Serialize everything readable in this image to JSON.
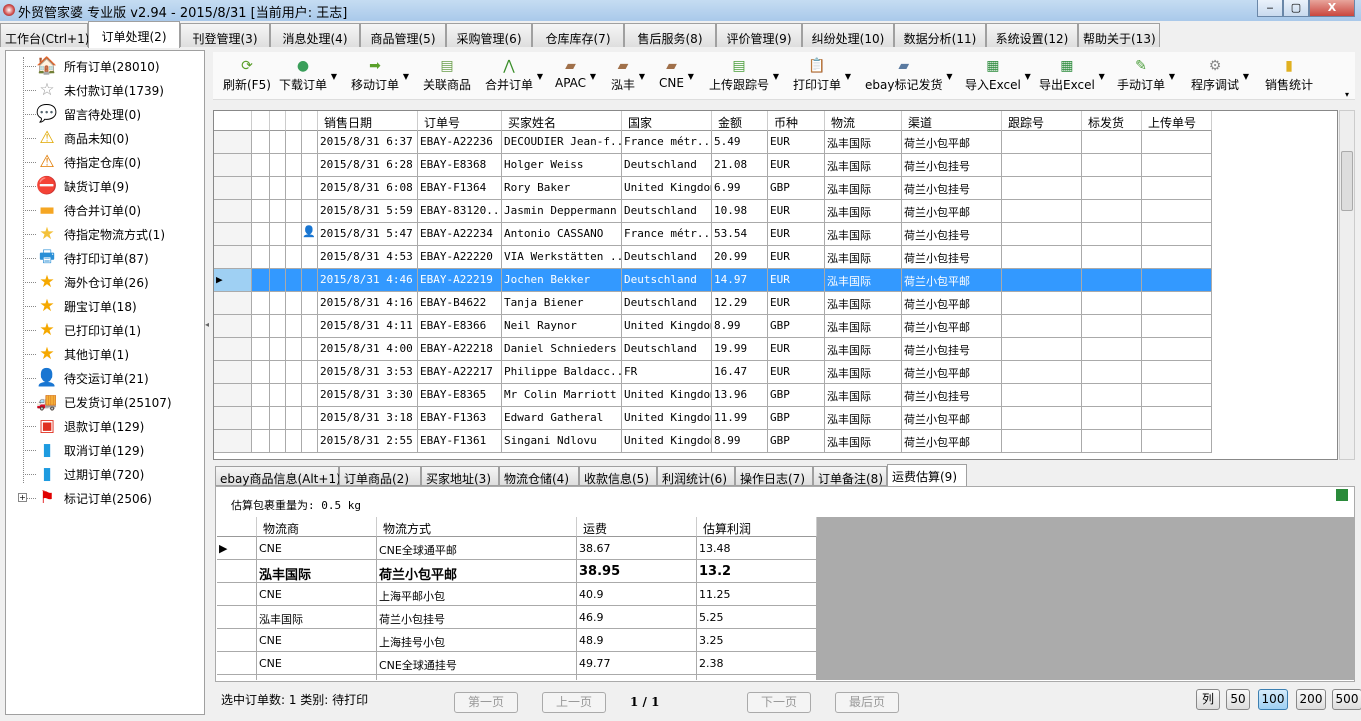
{
  "window": {
    "title": "外贸管家婆 专业版 v2.94 - 2015/8/31 [当前用户: 王志]",
    "min": "‒",
    "max": "▢",
    "close": "X"
  },
  "main_tabs": [
    "工作台(Ctrl+1)",
    "订单处理(2)",
    "刊登管理(3)",
    "消息处理(4)",
    "商品管理(5)",
    "采购管理(6)",
    "仓库库存(7)",
    "售后服务(8)",
    "评价管理(9)",
    "纠纷处理(10)",
    "数据分析(11)",
    "系统设置(12)",
    "帮助关于(13)"
  ],
  "active_tab": 1,
  "tree": [
    {
      "label": "所有订单(28010)",
      "icon": "home-icon",
      "glyph": "🏠",
      "color": "#e8641e"
    },
    {
      "label": "未付款订单(1739)",
      "icon": "star-outline-icon",
      "glyph": "☆",
      "color": "#999999"
    },
    {
      "label": "留言待处理(0)",
      "icon": "speech-bubble-icon",
      "glyph": "💬",
      "color": "#1e90ff"
    },
    {
      "label": "商品未知(0)",
      "icon": "warning-icon",
      "glyph": "⚠",
      "color": "#e0a800"
    },
    {
      "label": "待指定仓库(0)",
      "icon": "warning-outline-icon",
      "glyph": "⚠",
      "color": "#e07a00"
    },
    {
      "label": "缺货订单(9)",
      "icon": "no-entry-icon",
      "glyph": "⛔",
      "color": "#d40000"
    },
    {
      "label": "待合并订单(0)",
      "icon": "folder-icon",
      "glyph": "▬",
      "color": "#f5a623"
    },
    {
      "label": "待指定物流方式(1)",
      "icon": "half-star-icon",
      "glyph": "★",
      "color": "#f3c13a"
    },
    {
      "label": "待打印订单(87)",
      "icon": "printer-icon",
      "glyph": "🖶",
      "color": "#2a8fd6"
    },
    {
      "label": "海外仓订单(26)",
      "icon": "star-icon",
      "glyph": "★",
      "color": "#f5a800"
    },
    {
      "label": "跚宝订单(18)",
      "icon": "star-icon",
      "glyph": "★",
      "color": "#f5a800"
    },
    {
      "label": "已打印订单(1)",
      "icon": "star-icon",
      "glyph": "★",
      "color": "#f5a800"
    },
    {
      "label": "其他订单(1)",
      "icon": "star-icon",
      "glyph": "★",
      "color": "#f5a800"
    },
    {
      "label": "待交运订单(21)",
      "icon": "user-icon",
      "glyph": "👤",
      "color": "#2e9e2e"
    },
    {
      "label": "已发货订单(25107)",
      "icon": "truck-icon",
      "glyph": "🚚",
      "color": "#2a8fd6"
    },
    {
      "label": "退款订单(129)",
      "icon": "refund-icon",
      "glyph": "▣",
      "color": "#e03020"
    },
    {
      "label": "取消订单(129)",
      "icon": "trash-icon",
      "glyph": "▮",
      "color": "#1e9be0"
    },
    {
      "label": "过期订单(720)",
      "icon": "trash-icon",
      "glyph": "▮",
      "color": "#1e9be0"
    },
    {
      "label": "标记订单(2506)",
      "icon": "flag-icon",
      "glyph": "⚑",
      "color": "#e00000"
    }
  ],
  "toolbar": [
    {
      "label": "刷新(F5)",
      "icon": "refresh-icon",
      "glyph": "⟳",
      "color": "#5a9e2a",
      "dd": false
    },
    {
      "label": "下载订单",
      "icon": "globe-icon",
      "glyph": "●",
      "color": "#3a9e5a",
      "dd": true
    },
    {
      "label": "移动订单",
      "icon": "arrow-right-icon",
      "glyph": "➡",
      "color": "#5aa02a",
      "dd": true
    },
    {
      "label": "关联商品",
      "icon": "link-icon",
      "glyph": "▤",
      "color": "#6a9e4a",
      "dd": false
    },
    {
      "label": "合并订单",
      "icon": "merge-icon",
      "glyph": "⋀",
      "color": "#3a8e2a",
      "dd": true
    },
    {
      "label": "APAC",
      "icon": "truck-icon",
      "glyph": "▰",
      "color": "#a0704a",
      "dd": true
    },
    {
      "label": "泓丰",
      "icon": "truck-icon",
      "glyph": "▰",
      "color": "#a0704a",
      "dd": true
    },
    {
      "label": "CNE",
      "icon": "truck-icon",
      "glyph": "▰",
      "color": "#a0704a",
      "dd": true
    },
    {
      "label": "上传跟踪号",
      "icon": "upload-icon",
      "glyph": "▤",
      "color": "#4a9e3a",
      "dd": true
    },
    {
      "label": "打印订单",
      "icon": "clipboard-icon",
      "glyph": "📋",
      "color": "#a08040",
      "dd": true
    },
    {
      "label": "ebay标记发货",
      "icon": "truck-icon",
      "glyph": "▰",
      "color": "#5a7aa0",
      "dd": true
    },
    {
      "label": "导入Excel",
      "icon": "excel-icon",
      "glyph": "▦",
      "color": "#2a8a3a",
      "dd": true
    },
    {
      "label": "导出Excel",
      "icon": "excel-icon",
      "glyph": "▦",
      "color": "#2a8a3a",
      "dd": true
    },
    {
      "label": "手动订单",
      "icon": "edit-icon",
      "glyph": "✎",
      "color": "#4a9e3a",
      "dd": true
    },
    {
      "label": "程序调试",
      "icon": "gear-icon",
      "glyph": "⚙",
      "color": "#888888",
      "dd": true
    },
    {
      "label": "销售统计",
      "icon": "coins-icon",
      "glyph": "▮",
      "color": "#e0b020",
      "dd": false
    }
  ],
  "orders": {
    "columns": [
      "销售日期",
      "订单号",
      "买家姓名",
      "国家",
      "金额",
      "币种",
      "物流",
      "渠道",
      "跟踪号",
      "标发货",
      "上传单号"
    ],
    "selected_row": 6,
    "rows": [
      [
        "2015/8/31 6:37",
        "EBAY-A22236",
        "DECOUDIER Jean-f...",
        "France métr...",
        "5.49",
        "EUR",
        "泓丰国际",
        "荷兰小包平邮",
        "",
        "",
        ""
      ],
      [
        "2015/8/31 6:28",
        "EBAY-E8368",
        "Holger Weiss",
        "Deutschland",
        "21.08",
        "EUR",
        "泓丰国际",
        "荷兰小包挂号",
        "",
        "",
        ""
      ],
      [
        "2015/8/31 6:08",
        "EBAY-F1364",
        "Rory Baker",
        "United Kingdom",
        "6.99",
        "GBP",
        "泓丰国际",
        "荷兰小包挂号",
        "",
        "",
        ""
      ],
      [
        "2015/8/31 5:59",
        "EBAY-83120...",
        "Jasmin Deppermann",
        "Deutschland",
        "10.98",
        "EUR",
        "泓丰国际",
        "荷兰小包平邮",
        "",
        "",
        ""
      ],
      [
        "2015/8/31 5:47",
        "EBAY-A22234",
        "Antonio CASSANO",
        "France métr...",
        "53.54",
        "EUR",
        "泓丰国际",
        "荷兰小包挂号",
        "",
        "",
        ""
      ],
      [
        "2015/8/31 4:53",
        "EBAY-A22220",
        "VIA Werkstätten ...",
        "Deutschland",
        "20.99",
        "EUR",
        "泓丰国际",
        "荷兰小包挂号",
        "",
        "",
        ""
      ],
      [
        "2015/8/31 4:46",
        "EBAY-A22219",
        "Jochen Bekker",
        "Deutschland",
        "14.97",
        "EUR",
        "泓丰国际",
        "荷兰小包平邮",
        "",
        "",
        ""
      ],
      [
        "2015/8/31 4:16",
        "EBAY-B4622",
        "Tanja Biener",
        "Deutschland",
        "12.29",
        "EUR",
        "泓丰国际",
        "荷兰小包平邮",
        "",
        "",
        ""
      ],
      [
        "2015/8/31 4:11",
        "EBAY-E8366",
        "Neil Raynor",
        "United Kingdom",
        "8.99",
        "GBP",
        "泓丰国际",
        "荷兰小包平邮",
        "",
        "",
        ""
      ],
      [
        "2015/8/31 4:00",
        "EBAY-A22218",
        "Daniel Schnieders",
        "Deutschland",
        "19.99",
        "EUR",
        "泓丰国际",
        "荷兰小包挂号",
        "",
        "",
        ""
      ],
      [
        "2015/8/31 3:53",
        "EBAY-A22217",
        "Philippe Baldacc...",
        "FR",
        "16.47",
        "EUR",
        "泓丰国际",
        "荷兰小包平邮",
        "",
        "",
        ""
      ],
      [
        "2015/8/31 3:30",
        "EBAY-E8365",
        "Mr Colin Marriott",
        "United Kingdom",
        "13.96",
        "GBP",
        "泓丰国际",
        "荷兰小包挂号",
        "",
        "",
        ""
      ],
      [
        "2015/8/31 3:18",
        "EBAY-F1363",
        "Edward Gatheral",
        "United Kingdom",
        "11.99",
        "GBP",
        "泓丰国际",
        "荷兰小包平邮",
        "",
        "",
        ""
      ],
      [
        "2015/8/31 2:55",
        "EBAY-F1361",
        "Singani Ndlovu",
        "United Kingdom",
        "8.99",
        "GBP",
        "泓丰国际",
        "荷兰小包平邮",
        "",
        "",
        ""
      ]
    ]
  },
  "detail_tabs": [
    "ebay商品信息(Alt+1)",
    "订单商品(2)",
    "买家地址(3)",
    "物流仓储(4)",
    "收款信息(5)",
    "利润统计(6)",
    "操作日志(7)",
    "订单备注(8)",
    "运费估算(9)"
  ],
  "active_detail_tab": 8,
  "estimate": {
    "weight_label": "估算包裹重量为: 0.5 kg",
    "columns": [
      "物流商",
      "物流方式",
      "运费",
      "估算利润"
    ],
    "bold_row": 1,
    "rows": [
      [
        "CNE",
        "CNE全球通平邮",
        "38.67",
        "13.48"
      ],
      [
        "泓丰国际",
        "荷兰小包平邮",
        "38.95",
        "13.2"
      ],
      [
        "CNE",
        "上海平邮小包",
        "40.9",
        "11.25"
      ],
      [
        "泓丰国际",
        "荷兰小包挂号",
        "46.9",
        "5.25"
      ],
      [
        "CNE",
        "上海挂号小包",
        "48.9",
        "3.25"
      ],
      [
        "CNE",
        "CNE全球通挂号",
        "49.77",
        "2.38"
      ]
    ]
  },
  "status": {
    "text": "选中订单数: 1 类别: 待打印",
    "first": "第一页",
    "prev": "上一页",
    "page": "1 / 1",
    "next": "下一页",
    "last": "最后页"
  },
  "page_size": {
    "columns": "列",
    "options": [
      "50",
      "100",
      "200",
      "500"
    ],
    "selected": "100"
  },
  "colors": {
    "selection": "#3399ff",
    "titlebar": "#b8d3ef",
    "close": "#c9463d"
  }
}
